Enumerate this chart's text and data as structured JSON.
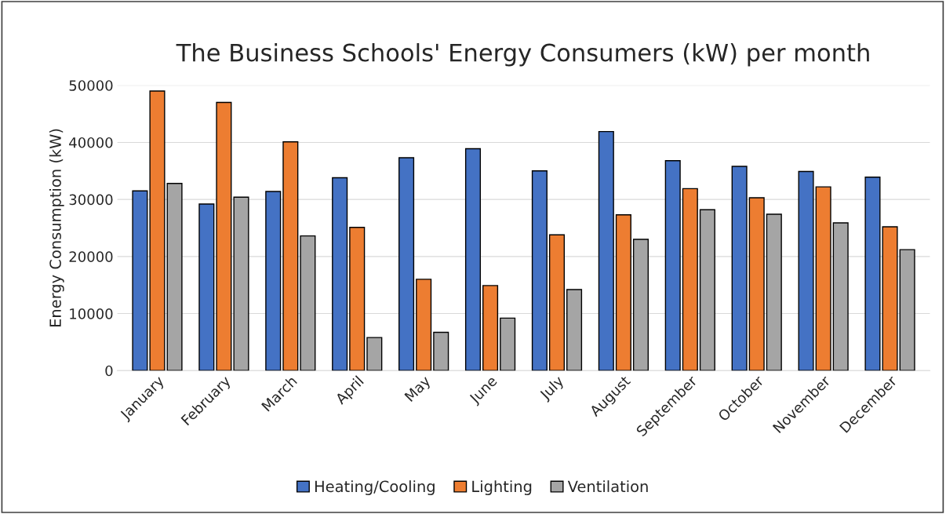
{
  "chart_data": {
    "type": "bar",
    "title": "The Business Schools' Energy Consumers (kW) per month",
    "ylabel": "Energy Consumption (kW)",
    "categories": [
      "January",
      "February",
      "March",
      "April",
      "May",
      "June",
      "July",
      "August",
      "September",
      "October",
      "November",
      "December"
    ],
    "series": [
      {
        "name": "Heating/Cooling",
        "color": "#4472c4",
        "values": [
          31500,
          29200,
          31400,
          33800,
          37300,
          38900,
          35000,
          41900,
          36800,
          35800,
          34900,
          33900
        ]
      },
      {
        "name": "Lighting",
        "color": "#ed7d31",
        "values": [
          49000,
          47000,
          40100,
          25100,
          16000,
          14900,
          23800,
          27300,
          31900,
          30300,
          32200,
          25200
        ]
      },
      {
        "name": "Ventilation",
        "color": "#a5a5a5",
        "values": [
          32800,
          30400,
          23600,
          5800,
          6700,
          9200,
          14200,
          23000,
          28200,
          27400,
          25900,
          21200
        ]
      }
    ],
    "ylim": [
      0,
      50000
    ],
    "yticks": [
      0,
      10000,
      20000,
      30000,
      40000,
      50000
    ],
    "grid": "y",
    "legend": "bottom"
  }
}
